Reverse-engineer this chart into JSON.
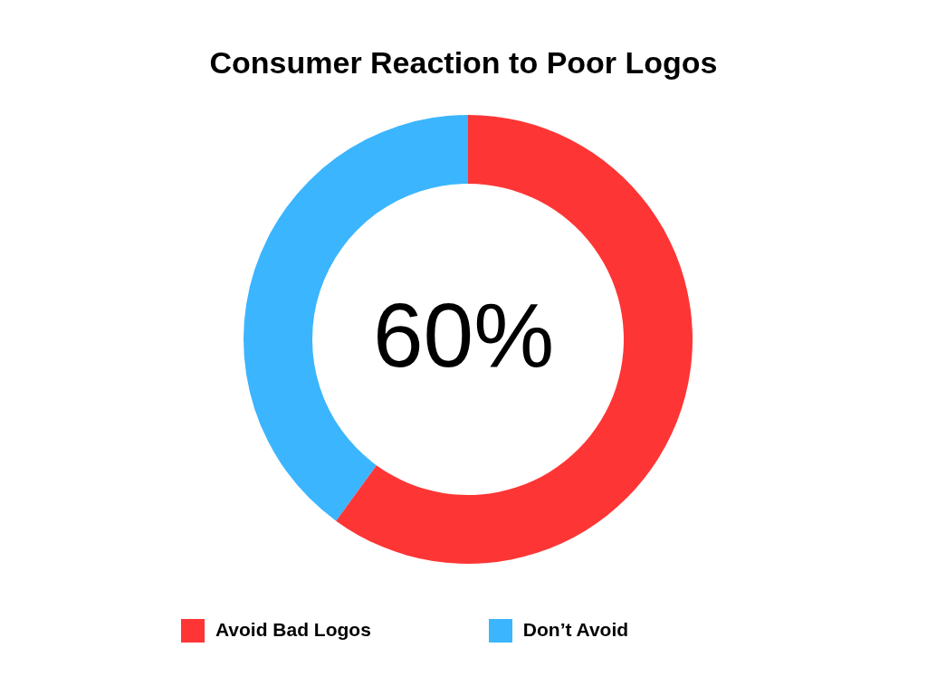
{
  "chart_data": {
    "type": "donut",
    "title": "Consumer Reaction to Poor Logos",
    "categories": [
      "Don’t Avoid",
      "Avoid Bad Logos"
    ],
    "values": [
      40,
      60
    ],
    "colors": [
      "#3bb5fe",
      "#fe3535"
    ],
    "annotations": [
      "60%"
    ],
    "legend": "bottom"
  }
}
